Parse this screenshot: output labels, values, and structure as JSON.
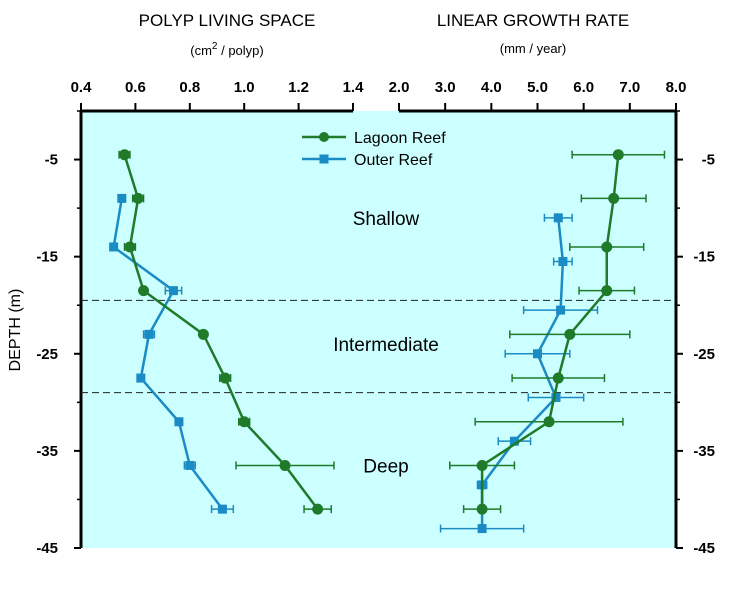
{
  "chart_data": {
    "type": "line",
    "colors": {
      "lagoon": "#1f7a2a",
      "outer": "#1a8bc4",
      "background": "#ccffff"
    },
    "left_panel": {
      "title": "POLYP LIVING SPACE",
      "unit_prefix": "(cm",
      "unit_sup": "2",
      "unit_suffix": " / polyp)",
      "xlim": [
        0.4,
        1.4
      ],
      "xticks": [
        "0.4",
        "0.6",
        "0.8",
        "1.0",
        "1.2",
        "1.4"
      ],
      "xtick_values": [
        0.4,
        0.6,
        0.8,
        1.0,
        1.2,
        1.4
      ],
      "series": [
        {
          "name": "Lagoon Reef",
          "points": [
            {
              "x": 0.56,
              "y": -4.5,
              "err": 0.02
            },
            {
              "x": 0.61,
              "y": -9.0,
              "err": 0.02
            },
            {
              "x": 0.58,
              "y": -14.0,
              "err": 0.02
            },
            {
              "x": 0.63,
              "y": -18.5,
              "err": 0.0
            },
            {
              "x": 0.85,
              "y": -23.0,
              "err": 0.0
            },
            {
              "x": 0.93,
              "y": -27.5,
              "err": 0.02
            },
            {
              "x": 1.0,
              "y": -32.0,
              "err": 0.02
            },
            {
              "x": 1.15,
              "y": -36.5,
              "err": 0.18
            },
            {
              "x": 1.27,
              "y": -41.0,
              "err": 0.05
            }
          ]
        },
        {
          "name": "Outer Reef",
          "points": [
            {
              "x": 0.55,
              "y": -9.0,
              "err": 0.0
            },
            {
              "x": 0.52,
              "y": -14.0,
              "err": 0.0
            },
            {
              "x": 0.74,
              "y": -18.5,
              "err": 0.03
            },
            {
              "x": 0.65,
              "y": -23.0,
              "err": 0.02
            },
            {
              "x": 0.62,
              "y": -27.5,
              "err": 0.0
            },
            {
              "x": 0.76,
              "y": -32.0,
              "err": 0.0
            },
            {
              "x": 0.8,
              "y": -36.5,
              "err": 0.02
            },
            {
              "x": 0.92,
              "y": -41.0,
              "err": 0.04
            }
          ]
        }
      ]
    },
    "right_panel": {
      "title": "LINEAR GROWTH RATE",
      "unit": "(mm / year)",
      "xlim": [
        2.0,
        8.0
      ],
      "xticks": [
        "2.0",
        "3.0",
        "4.0",
        "5.0",
        "6.0",
        "7.0",
        "8.0"
      ],
      "xtick_values": [
        2.0,
        3.0,
        4.0,
        5.0,
        6.0,
        7.0,
        8.0
      ],
      "series": [
        {
          "name": "Lagoon Reef",
          "points": [
            {
              "x": 6.75,
              "y": -4.5,
              "err": 1.0
            },
            {
              "x": 6.65,
              "y": -9.0,
              "err": 0.7
            },
            {
              "x": 6.5,
              "y": -14.0,
              "err": 0.8
            },
            {
              "x": 6.5,
              "y": -18.5,
              "err": 0.6
            },
            {
              "x": 5.7,
              "y": -23.0,
              "err": 1.3
            },
            {
              "x": 5.45,
              "y": -27.5,
              "err": 1.0
            },
            {
              "x": 5.25,
              "y": -32.0,
              "err": 1.6
            },
            {
              "x": 3.8,
              "y": -36.5,
              "err": 0.7
            },
            {
              "x": 3.8,
              "y": -41.0,
              "err": 0.4
            }
          ]
        },
        {
          "name": "Outer Reef",
          "points": [
            {
              "x": 5.45,
              "y": -11.0,
              "err": 0.3
            },
            {
              "x": 5.55,
              "y": -15.5,
              "err": 0.2
            },
            {
              "x": 5.5,
              "y": -20.5,
              "err": 0.8
            },
            {
              "x": 5.0,
              "y": -25.0,
              "err": 0.7
            },
            {
              "x": 5.4,
              "y": -29.5,
              "err": 0.6
            },
            {
              "x": 4.5,
              "y": -34.0,
              "err": 0.35
            },
            {
              "x": 3.8,
              "y": -38.5,
              "err": 0.1
            },
            {
              "x": 3.8,
              "y": -43.0,
              "err": 0.9
            }
          ]
        }
      ]
    },
    "y_axis": {
      "label": "DEPTH (m)",
      "ylim": [
        -45,
        0
      ],
      "yticks": [
        "-5",
        "-15",
        "-25",
        "-35",
        "-45"
      ],
      "ytick_values": [
        -5,
        -15,
        -25,
        -35,
        -45
      ]
    },
    "zone_boundaries": [
      -19.5,
      -29.0
    ],
    "zones": [
      {
        "label": "Shallow",
        "y": -11.0
      },
      {
        "label": "Intermediate",
        "y": -24.0
      },
      {
        "label": "Deep",
        "y": -36.5
      }
    ],
    "legend": {
      "position": "top-center",
      "entries": [
        "Lagoon Reef",
        "Outer Reef"
      ]
    },
    "grid": false
  }
}
